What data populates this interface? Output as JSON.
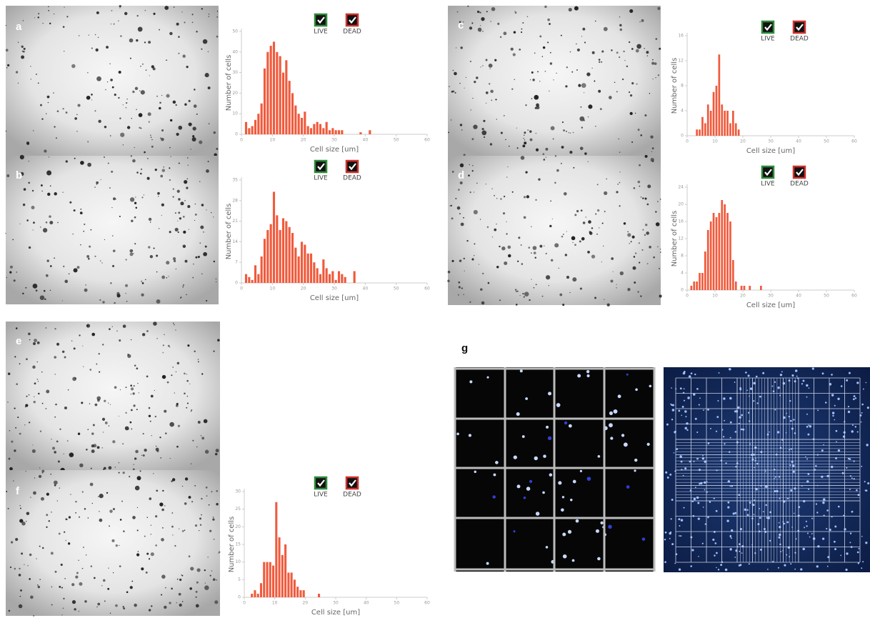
{
  "panels": [
    "a",
    "b",
    "c",
    "d",
    "e",
    "f",
    "g"
  ],
  "chart_data": [
    {
      "type": "histogram",
      "ylabel": "Number of cells",
      "xlabel": "Cell size [um]",
      "color": "#f05a3c",
      "checkboxes": [
        {
          "label": "LIVE",
          "color": "#2e8b3a"
        },
        {
          "label": "DEAD",
          "color": "#d0312d"
        }
      ],
      "bins": [
        0,
        1,
        2,
        3,
        4,
        5,
        6,
        7,
        8,
        9,
        10,
        11,
        12,
        13,
        14,
        15,
        16,
        17,
        18,
        19,
        20,
        21,
        22,
        23,
        24,
        25,
        26,
        27,
        28,
        29,
        30,
        31,
        32,
        33,
        34,
        35,
        36,
        37,
        38,
        39,
        40,
        41,
        42
      ],
      "values": [
        0,
        6,
        3,
        4,
        7,
        10,
        15,
        32,
        40,
        43,
        45,
        40,
        38,
        30,
        36,
        26,
        20,
        14,
        10,
        8,
        11,
        4,
        3,
        5,
        6,
        5,
        3,
        6,
        2,
        3,
        2,
        2,
        2,
        0,
        0,
        0,
        0,
        0,
        1,
        0,
        0,
        2
      ],
      "xlim": [
        0,
        60
      ],
      "xticks": [
        0,
        10,
        20,
        30,
        40,
        50,
        60
      ],
      "ylim": [
        0,
        50
      ],
      "yticks": [
        0,
        10,
        20,
        30,
        40,
        50
      ]
    },
    {
      "type": "histogram",
      "ylabel": "Number of cells",
      "xlabel": "Cell size [um]",
      "color": "#f05a3c",
      "checkboxes": [
        {
          "label": "LIVE",
          "color": "#2e8b3a"
        },
        {
          "label": "DEAD",
          "color": "#d0312d"
        }
      ],
      "bins": [
        0,
        1,
        2,
        3,
        4,
        5,
        6,
        7,
        8,
        9,
        10,
        11,
        12,
        13,
        14,
        15,
        16,
        17,
        18,
        19,
        20,
        21,
        22,
        23,
        24,
        25,
        26,
        27,
        28,
        29,
        30,
        31,
        32,
        33,
        34,
        35,
        36,
        37,
        38
      ],
      "values": [
        0,
        3,
        2,
        1,
        6,
        3,
        9,
        15,
        18,
        20,
        31,
        23,
        18,
        22,
        21,
        19,
        17,
        12,
        9,
        14,
        13,
        10,
        10,
        7,
        5,
        3,
        8,
        5,
        3,
        4,
        1,
        4,
        3,
        2,
        0,
        0,
        4,
        0
      ],
      "xlim": [
        0,
        60
      ],
      "xticks": [
        0,
        10,
        20,
        30,
        40,
        50,
        60
      ],
      "ylim": [
        0,
        35
      ],
      "yticks": [
        0,
        7,
        14,
        21,
        28,
        35
      ]
    },
    {
      "type": "histogram",
      "ylabel": "Number of cells",
      "xlabel": "Cell size [um]",
      "color": "#f05a3c",
      "checkboxes": [
        {
          "label": "LIVE",
          "color": "#2e8b3a"
        },
        {
          "label": "DEAD",
          "color": "#d0312d"
        }
      ],
      "bins": [
        3,
        4,
        5,
        6,
        7,
        8,
        9,
        10,
        11,
        12,
        13,
        14,
        15,
        16,
        17,
        18,
        19
      ],
      "values": [
        1,
        1,
        3,
        2,
        5,
        4,
        7,
        8,
        13,
        5,
        4,
        4,
        2,
        4,
        2,
        1
      ],
      "xlim": [
        0,
        60
      ],
      "xticks": [
        0,
        10,
        20,
        30,
        40,
        50,
        60
      ],
      "ylim": [
        0,
        16
      ],
      "yticks": [
        0,
        4,
        8,
        12,
        16
      ]
    },
    {
      "type": "histogram",
      "ylabel": "Number of cells",
      "xlabel": "Cell size [um]",
      "color": "#f05a3c",
      "checkboxes": [
        {
          "label": "LIVE",
          "color": "#2e8b3a"
        },
        {
          "label": "DEAD",
          "color": "#d0312d"
        }
      ],
      "bins": [
        1,
        2,
        3,
        4,
        5,
        6,
        7,
        8,
        9,
        10,
        11,
        12,
        13,
        14,
        15,
        16,
        17,
        18,
        19,
        20,
        21,
        22,
        23,
        24,
        25,
        26,
        27,
        28
      ],
      "values": [
        1,
        2,
        2,
        4,
        4,
        9,
        14,
        16,
        18,
        17,
        18,
        21,
        20,
        18,
        16,
        7,
        2,
        0,
        1,
        1,
        0,
        1,
        0,
        0,
        0,
        1,
        0
      ],
      "xlim": [
        0,
        60
      ],
      "xticks": [
        0,
        10,
        20,
        30,
        40,
        50,
        60
      ],
      "ylim": [
        0,
        24
      ],
      "yticks": [
        0,
        4,
        8,
        12,
        16,
        20,
        24
      ]
    },
    {
      "type": "histogram",
      "ylabel": "Number of cells",
      "xlabel": "Cell size [um]",
      "color": "#f05a3c",
      "checkboxes": [
        {
          "label": "LIVE",
          "color": "#2e8b3a"
        },
        {
          "label": "DEAD",
          "color": "#d0312d"
        }
      ],
      "bins": [
        2,
        3,
        4,
        5,
        6,
        7,
        8,
        9,
        10,
        11,
        12,
        13,
        14,
        15,
        16,
        17,
        18,
        19,
        20,
        21,
        22,
        23,
        24,
        25
      ],
      "values": [
        1,
        2,
        1,
        4,
        10,
        10,
        10,
        9,
        27,
        17,
        12,
        15,
        7,
        7,
        5,
        3,
        2,
        2,
        0,
        0,
        0,
        0,
        1
      ],
      "xlim": [
        0,
        60
      ],
      "xticks": [
        0,
        10,
        20,
        30,
        40,
        50,
        60
      ],
      "ylim": [
        0,
        30
      ],
      "yticks": [
        0,
        5,
        10,
        15,
        20,
        25,
        30
      ]
    }
  ]
}
